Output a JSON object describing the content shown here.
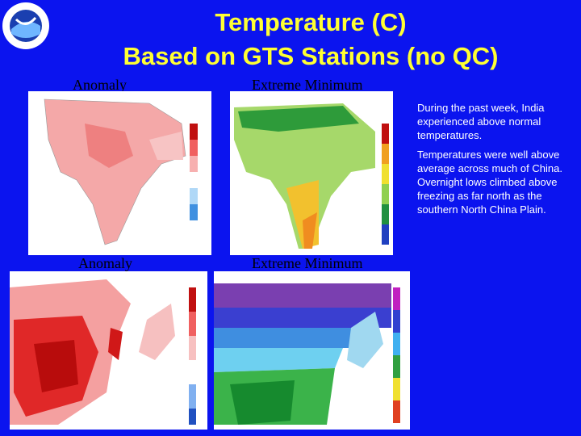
{
  "header": {
    "title_lines": [
      "Temperature (C)",
      "Based on GTS Stations (no QC)"
    ]
  },
  "panels": [
    {
      "label": "Anomaly"
    },
    {
      "label": "Extreme Minimum"
    },
    {
      "label": "Anomaly"
    },
    {
      "label": "Extreme Minimum"
    }
  ],
  "notes": [
    "During the past week, India experienced above normal temperatures.",
    "Temperatures were well above average across much of China.  Overnight lows climbed above freezing as far north as the southern North China Plain."
  ]
}
